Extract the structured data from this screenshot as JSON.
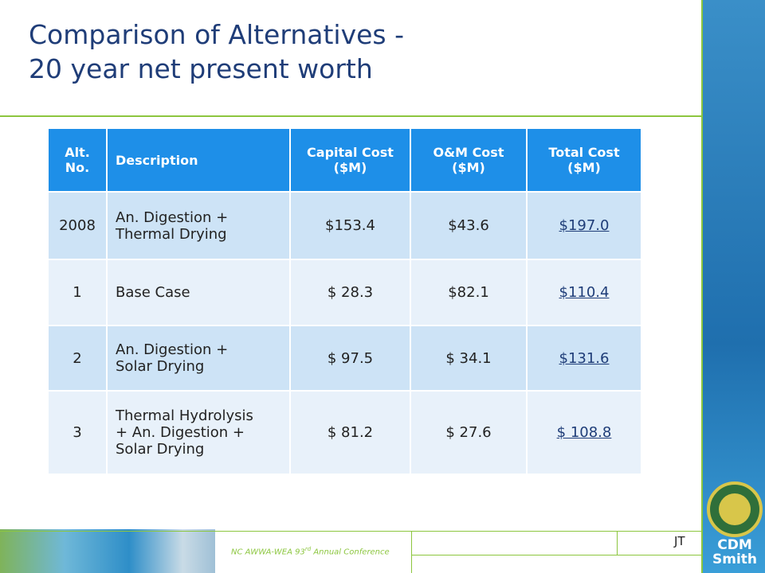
{
  "header": {
    "title_lines": [
      "Comparison of Alternatives -",
      "20 year net present worth"
    ]
  },
  "table": {
    "columns": [
      [
        "Alt.",
        "No."
      ],
      [
        "Description"
      ],
      [
        "Capital Cost",
        "($M)"
      ],
      [
        "O&M Cost",
        "($M)"
      ],
      [
        "Total Cost",
        "($M)"
      ]
    ],
    "rows": [
      [
        [
          "2008"
        ],
        [
          "An. Digestion +",
          "Thermal Drying"
        ],
        [
          "$153.4"
        ],
        [
          "$43.6"
        ],
        [
          "$197.0"
        ]
      ],
      [
        [
          "1"
        ],
        [
          "Base Case"
        ],
        [
          "$ 28.3"
        ],
        [
          "$82.1"
        ],
        [
          "$110.4"
        ]
      ],
      [
        [
          "2"
        ],
        [
          "An. Digestion +",
          "Solar Drying"
        ],
        [
          "$ 97.5"
        ],
        [
          "$ 34.1"
        ],
        [
          "$131.6"
        ]
      ],
      [
        [
          "3"
        ],
        [
          "Thermal Hydrolysis",
          "+ An. Digestion +",
          "Solar Drying"
        ],
        [
          "$ 81.2"
        ],
        [
          "$ 27.6"
        ],
        [
          "$ 108.8"
        ]
      ]
    ]
  },
  "footer": {
    "conference": [
      "NC AWWA-WEA 93",
      "rd",
      " Annual Conference"
    ],
    "initials": "JT",
    "logo": [
      "CDM",
      "Smith"
    ]
  }
}
